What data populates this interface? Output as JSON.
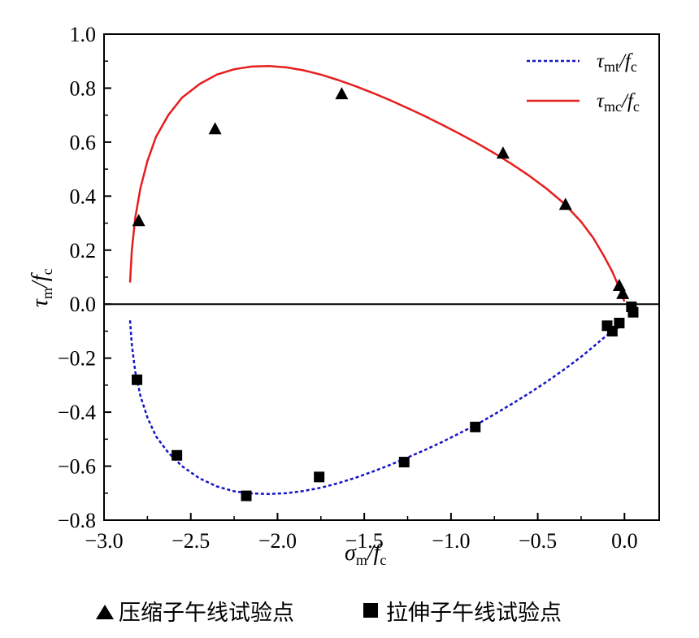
{
  "chart_data": {
    "type": "scatter",
    "xlim": [
      -3.0,
      0.2
    ],
    "ylim": [
      -0.8,
      1.0
    ],
    "x_ticks": [
      -3.0,
      -2.5,
      -2.0,
      -1.5,
      -1.0,
      -0.5,
      0.0
    ],
    "y_ticks": [
      -0.8,
      -0.6,
      -0.4,
      -0.2,
      0.0,
      0.2,
      0.4,
      0.6,
      0.8,
      1.0
    ],
    "x_tick_labels": [
      "−3.0",
      "−2.5",
      "−2.0",
      "−1.5",
      "−1.0",
      "−0.5",
      "0.0"
    ],
    "y_tick_labels": [
      "−0.8",
      "−0.6",
      "−0.4",
      "−0.2",
      "0.0",
      "0.2",
      "0.4",
      "0.6",
      "0.8",
      "1.0"
    ],
    "xlabel": {
      "main": "σ",
      "sub": "m",
      "sep": "/",
      "main2": "f",
      "sub2": "c"
    },
    "ylabel": {
      "main": "τ",
      "sub": "m",
      "sep": "/",
      "main2": "f",
      "sub2": "c"
    },
    "zero_line": true,
    "legend_position": "top-right",
    "series": [
      {
        "name": "τmt/fc",
        "label_parts": {
          "main": "τ",
          "sub": "mt",
          "sep": "/",
          "main2": "f",
          "sub2": "c"
        },
        "kind": "line",
        "style": "dashed",
        "color": "#1414c8",
        "x": [
          -2.85,
          -2.84,
          -2.82,
          -2.79,
          -2.75,
          -2.7,
          -2.63,
          -2.55,
          -2.45,
          -2.35,
          -2.25,
          -2.15,
          -2.05,
          -1.95,
          -1.85,
          -1.75,
          -1.65,
          -1.55,
          -1.45,
          -1.35,
          -1.25,
          -1.15,
          -1.05,
          -0.95,
          -0.85,
          -0.75,
          -0.65,
          -0.55,
          -0.45,
          -0.35,
          -0.25,
          -0.18,
          -0.12,
          -0.07,
          -0.03
        ],
        "y": [
          -0.06,
          -0.15,
          -0.25,
          -0.34,
          -0.42,
          -0.49,
          -0.55,
          -0.6,
          -0.645,
          -0.675,
          -0.693,
          -0.701,
          -0.703,
          -0.7,
          -0.692,
          -0.68,
          -0.663,
          -0.643,
          -0.62,
          -0.595,
          -0.568,
          -0.54,
          -0.51,
          -0.478,
          -0.445,
          -0.408,
          -0.37,
          -0.33,
          -0.288,
          -0.243,
          -0.195,
          -0.158,
          -0.125,
          -0.1,
          -0.085
        ]
      },
      {
        "name": "τmc/fc",
        "label_parts": {
          "main": "τ",
          "sub": "mc",
          "sep": "/",
          "main2": "f",
          "sub2": "c"
        },
        "kind": "line",
        "style": "solid",
        "color": "#e61e1e",
        "x": [
          -2.85,
          -2.84,
          -2.82,
          -2.79,
          -2.75,
          -2.7,
          -2.63,
          -2.55,
          -2.45,
          -2.35,
          -2.25,
          -2.15,
          -2.05,
          -1.95,
          -1.85,
          -1.75,
          -1.65,
          -1.55,
          -1.45,
          -1.35,
          -1.25,
          -1.15,
          -1.05,
          -0.95,
          -0.85,
          -0.75,
          -0.65,
          -0.55,
          -0.45,
          -0.35,
          -0.25,
          -0.18,
          -0.12,
          -0.07,
          -0.04,
          -0.02,
          -0.01,
          0.0
        ],
        "y": [
          0.08,
          0.2,
          0.32,
          0.43,
          0.53,
          0.62,
          0.7,
          0.765,
          0.815,
          0.85,
          0.87,
          0.88,
          0.882,
          0.877,
          0.866,
          0.85,
          0.83,
          0.807,
          0.782,
          0.755,
          0.726,
          0.696,
          0.664,
          0.631,
          0.596,
          0.559,
          0.519,
          0.476,
          0.428,
          0.374,
          0.305,
          0.245,
          0.18,
          0.12,
          0.075,
          0.045,
          0.025,
          0.01
        ]
      },
      {
        "name": "压缩子午线试验点",
        "kind": "scatter",
        "marker": "triangle",
        "color": "#000000",
        "x": [
          -2.8,
          -2.36,
          -1.63,
          -0.7,
          -0.34,
          -0.03,
          -0.01
        ],
        "y": [
          0.31,
          0.65,
          0.78,
          0.56,
          0.37,
          0.07,
          0.04
        ]
      },
      {
        "name": "拉伸子午线试验点",
        "kind": "scatter",
        "marker": "square",
        "color": "#000000",
        "x": [
          -2.81,
          -2.58,
          -2.18,
          -1.76,
          -1.27,
          -0.86,
          -0.1,
          -0.07,
          -0.03,
          0.04,
          0.05
        ],
        "y": [
          -0.28,
          -0.56,
          -0.71,
          -0.64,
          -0.585,
          -0.455,
          -0.08,
          -0.1,
          -0.07,
          -0.01,
          -0.03
        ]
      }
    ]
  }
}
